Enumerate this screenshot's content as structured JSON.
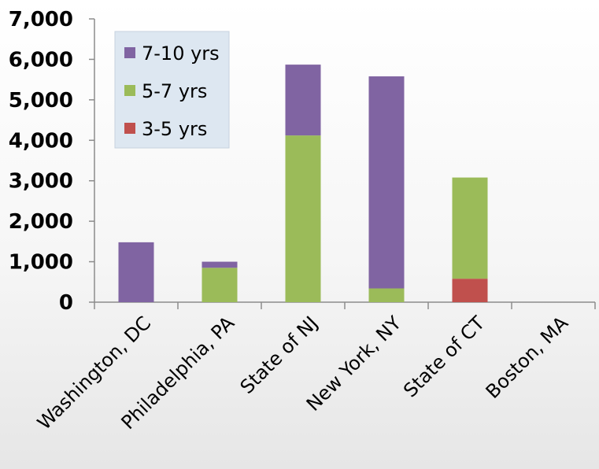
{
  "chart_data": {
    "type": "bar",
    "stacked": true,
    "categories": [
      "Washington, DC",
      "Philadelphia, PA",
      "State of NJ",
      "New York, NY",
      "State of CT",
      "Boston, MA"
    ],
    "series": [
      {
        "name": "3-5 yrs",
        "color": "#c0504d",
        "values": [
          0,
          0,
          0,
          0,
          580,
          0
        ]
      },
      {
        "name": "5-7 yrs",
        "color": "#9bbb59",
        "values": [
          0,
          850,
          4120,
          340,
          2500,
          0
        ]
      },
      {
        "name": "7-10 yrs",
        "color": "#8064a2",
        "values": [
          1480,
          150,
          1750,
          5240,
          0,
          0
        ]
      }
    ],
    "legend_order": [
      "7-10 yrs",
      "5-7 yrs",
      "3-5 yrs"
    ],
    "ylim": [
      0,
      7000
    ],
    "yticks": [
      "0",
      "1,000",
      "2,000",
      "3,000",
      "4,000",
      "5,000",
      "6,000",
      "7,000"
    ],
    "legend_position": "top-left",
    "grid": false
  }
}
